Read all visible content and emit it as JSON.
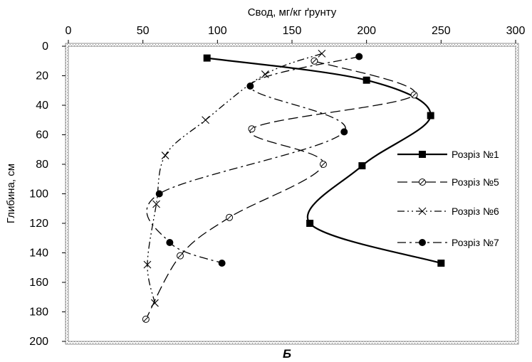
{
  "chart_data": {
    "type": "line",
    "orientation": "depth-profile",
    "xlabel": "Свод, мг/кг ґрунту",
    "ylabel": "Глибина, см",
    "caption": "Б",
    "xlim": [
      0,
      300
    ],
    "ylim": [
      0,
      200
    ],
    "y_inverted": true,
    "x_axis_position": "top",
    "x_ticks": [
      0,
      50,
      100,
      150,
      200,
      250,
      300
    ],
    "y_ticks": [
      0,
      20,
      40,
      60,
      80,
      100,
      120,
      140,
      160,
      180,
      200
    ],
    "grid": false,
    "legend_position": "right",
    "series": [
      {
        "name": "Розріз №1",
        "line_style": "solid",
        "marker": "square-filled",
        "color": "#000000",
        "points": [
          {
            "x": 93,
            "y": 8
          },
          {
            "x": 200,
            "y": 23
          },
          {
            "x": 243,
            "y": 47
          },
          {
            "x": 197,
            "y": 81
          },
          {
            "x": 162,
            "y": 120
          },
          {
            "x": 250,
            "y": 147
          }
        ]
      },
      {
        "name": "Розріз №5",
        "line_style": "long-dash",
        "marker": "circle-open-slash",
        "color": "#000000",
        "points": [
          {
            "x": 165,
            "y": 10
          },
          {
            "x": 232,
            "y": 33
          },
          {
            "x": 123,
            "y": 56
          },
          {
            "x": 171,
            "y": 80
          },
          {
            "x": 108,
            "y": 116
          },
          {
            "x": 75,
            "y": 142
          },
          {
            "x": 52,
            "y": 185
          }
        ]
      },
      {
        "name": "Розріз №6",
        "line_style": "dash-dot-dot",
        "marker": "x",
        "color": "#000000",
        "points": [
          {
            "x": 170,
            "y": 5
          },
          {
            "x": 132,
            "y": 19
          },
          {
            "x": 92,
            "y": 50
          },
          {
            "x": 65,
            "y": 74
          },
          {
            "x": 59,
            "y": 107
          },
          {
            "x": 53,
            "y": 148
          },
          {
            "x": 58,
            "y": 174
          }
        ]
      },
      {
        "name": "Розріз №7",
        "line_style": "dash-dot",
        "marker": "circle-filled",
        "color": "#000000",
        "points": [
          {
            "x": 195,
            "y": 7
          },
          {
            "x": 122,
            "y": 27
          },
          {
            "x": 185,
            "y": 58
          },
          {
            "x": 61,
            "y": 100
          },
          {
            "x": 68,
            "y": 133
          },
          {
            "x": 103,
            "y": 147
          }
        ]
      }
    ]
  }
}
